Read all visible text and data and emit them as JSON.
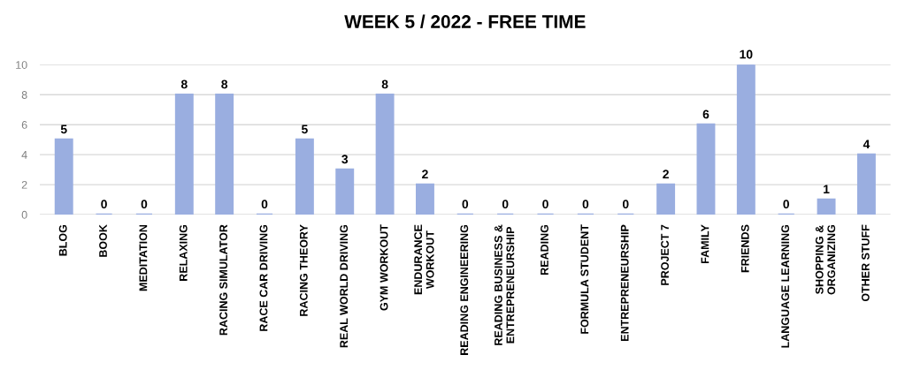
{
  "chart_data": {
    "type": "bar",
    "title": "WEEK 5 / 2022 - FREE TIME",
    "categories": [
      "BLOG",
      "BOOK",
      "MEDITATION",
      "RELAXING",
      "RACING SIMULATOR",
      "RACE CAR DRIVING",
      "RACING THEORY",
      "REAL WORLD DRIVING",
      "GYM WORKOUT",
      "ENDURANCE\nWORKOUT",
      "READING ENGINEERING",
      "READING BUSINESS &\nENTREPRENEURSHIP",
      "READING",
      "FORMULA STUDENT",
      "ENTREPRENEURSHIP",
      "PROJECT 7",
      "FAMILY",
      "FRIENDS",
      "LANGUAGE LEARNING",
      "SHOPPING &\nORGANIZING",
      "OTHER STUFF"
    ],
    "values": [
      5,
      0,
      0,
      8,
      8,
      0,
      5,
      3,
      8,
      2,
      0,
      0,
      0,
      0,
      0,
      2,
      6,
      10,
      0,
      1,
      4
    ],
    "color": "#9aaee0",
    "ylim": [
      0,
      10
    ],
    "yticks": [
      0,
      2,
      4,
      6,
      8,
      10
    ],
    "grid": "y",
    "data_labels": true
  }
}
